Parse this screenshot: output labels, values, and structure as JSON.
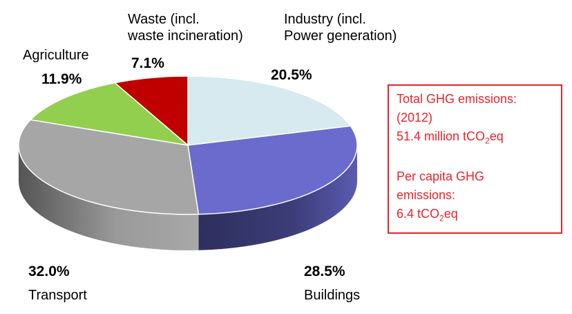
{
  "chart_data": {
    "type": "pie",
    "style": "3d",
    "categories": [
      "Industry (incl. Power generation)",
      "Buildings",
      "Transport",
      "Agriculture",
      "Waste (incl. waste incineration)"
    ],
    "values": [
      20.5,
      28.5,
      32.0,
      11.9,
      7.1
    ],
    "value_labels": [
      "20.5%",
      "28.5%",
      "32.0%",
      "11.9%",
      "7.1%"
    ],
    "colors": [
      "#d6eaef",
      "#6a6bcc",
      "#a6a6a6",
      "#92cf4e",
      "#c00000"
    ],
    "side_colors": [
      "#9bb3ba",
      "#303260",
      "#6b6b6b",
      "#5a8a2a",
      "#6e0000"
    ],
    "labels": {
      "industry": {
        "line1": "Industry (incl.",
        "line2": "Power generation)",
        "pct": "20.5%"
      },
      "buildings": {
        "name": "Buildings",
        "pct": "28.5%"
      },
      "transport": {
        "name": "Transport",
        "pct": "32.0%"
      },
      "agriculture": {
        "name": "Agriculture",
        "pct": "11.9%"
      },
      "waste": {
        "line1": "Waste (incl.",
        "line2": "waste incineration)",
        "pct": "7.1%"
      }
    }
  },
  "info_box": {
    "line1": "Total GHG emissions:",
    "line2": "(2012)",
    "line3_prefix": "51.4 million tCO",
    "line3_sub": "2",
    "line3_suffix": "eq",
    "line4": "Per capita GHG",
    "line5": "emissions:",
    "line6_prefix": "6.4 tCO",
    "line6_sub": "2",
    "line6_suffix": "eq",
    "color": "#e8232a"
  }
}
